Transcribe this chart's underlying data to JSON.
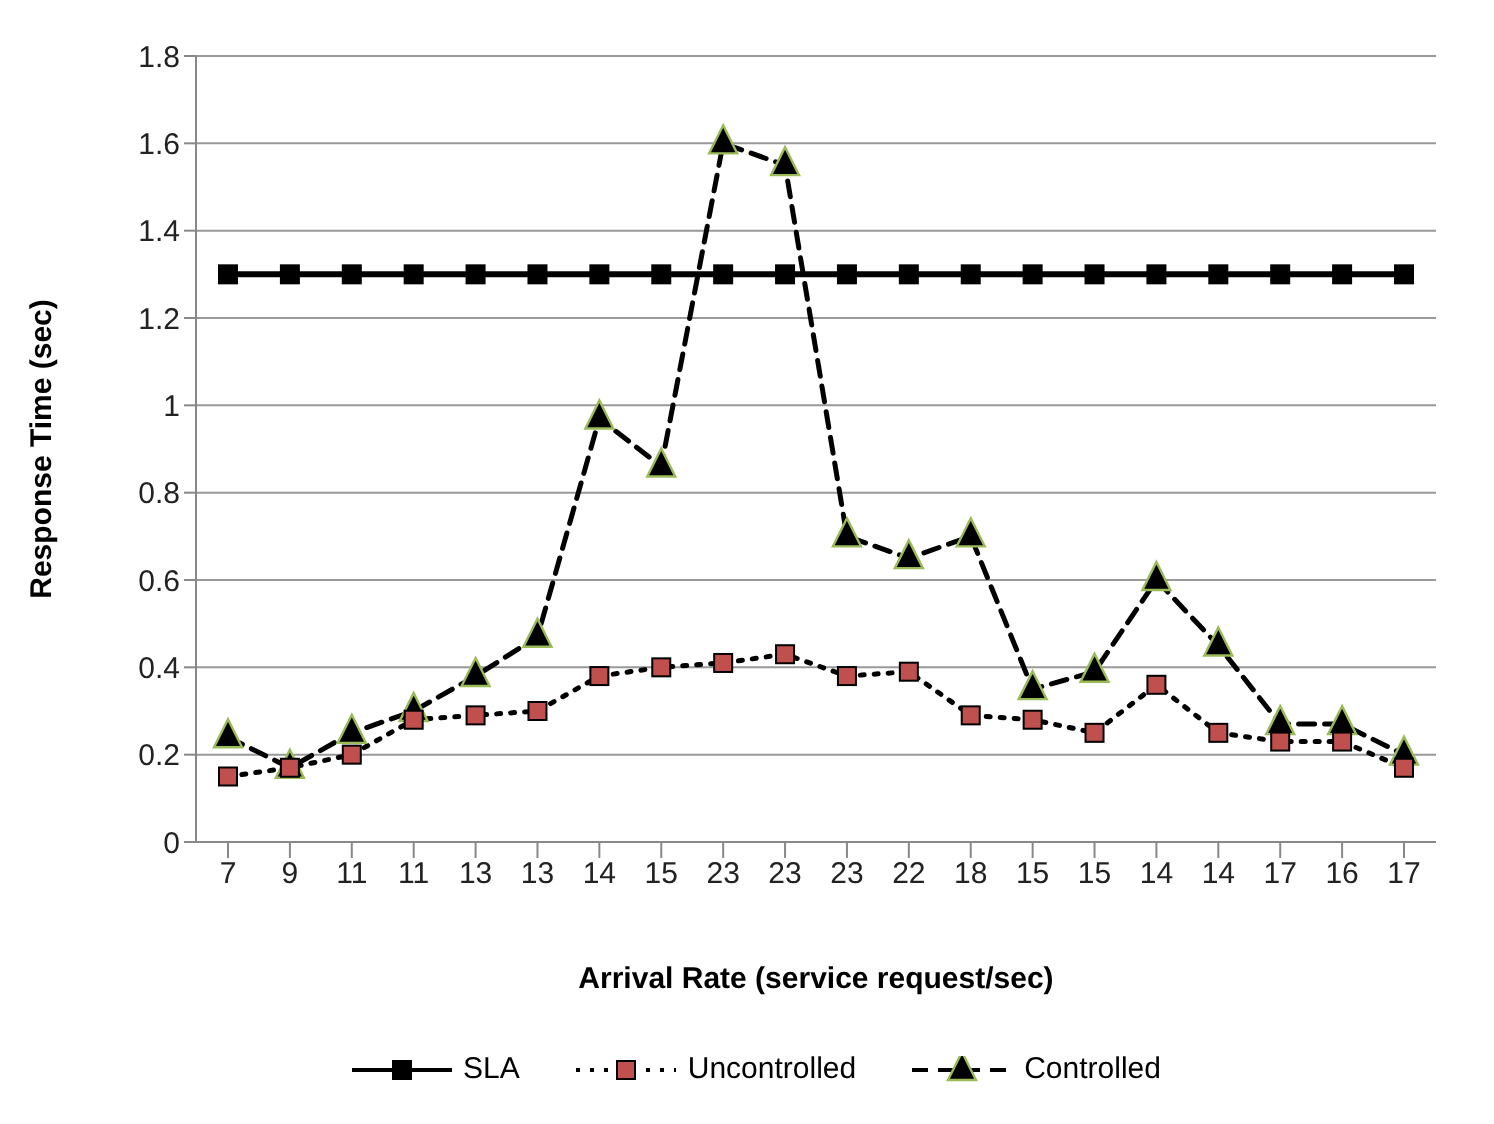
{
  "chart_data": {
    "type": "line",
    "xlabel": "Arrival Rate (service request/sec)",
    "ylabel": "Response Time (sec)",
    "categories": [
      "7",
      "9",
      "11",
      "11",
      "13",
      "13",
      "14",
      "15",
      "23",
      "23",
      "23",
      "22",
      "18",
      "15",
      "15",
      "14",
      "14",
      "17",
      "16",
      "17"
    ],
    "series": [
      {
        "name": "SLA",
        "color": "#000000",
        "marker": "square",
        "line_style": "solid",
        "values": [
          1.3,
          1.3,
          1.3,
          1.3,
          1.3,
          1.3,
          1.3,
          1.3,
          1.3,
          1.3,
          1.3,
          1.3,
          1.3,
          1.3,
          1.3,
          1.3,
          1.3,
          1.3,
          1.3,
          1.3
        ]
      },
      {
        "name": "Uncontrolled",
        "color": "#c0504d",
        "marker": "square",
        "line_style": "dotted",
        "values": [
          0.15,
          0.17,
          0.2,
          0.28,
          0.29,
          0.3,
          0.38,
          0.4,
          0.41,
          0.43,
          0.38,
          0.39,
          0.29,
          0.28,
          0.25,
          0.36,
          0.25,
          0.23,
          0.23,
          0.17
        ]
      },
      {
        "name": "Controlled",
        "color": "#9bbb59",
        "marker": "triangle",
        "line_style": "dashed",
        "values": [
          0.24,
          0.17,
          0.25,
          0.3,
          0.38,
          0.47,
          0.97,
          0.86,
          1.6,
          1.55,
          0.7,
          0.65,
          0.7,
          0.35,
          0.39,
          0.6,
          0.45,
          0.27,
          0.27,
          0.2
        ]
      }
    ],
    "ylim": [
      0,
      1.8
    ],
    "yticks": [
      0,
      0.2,
      0.4,
      0.6,
      0.8,
      1,
      1.2,
      1.4,
      1.6,
      1.8
    ],
    "grid": "y",
    "legend": "bottom"
  }
}
